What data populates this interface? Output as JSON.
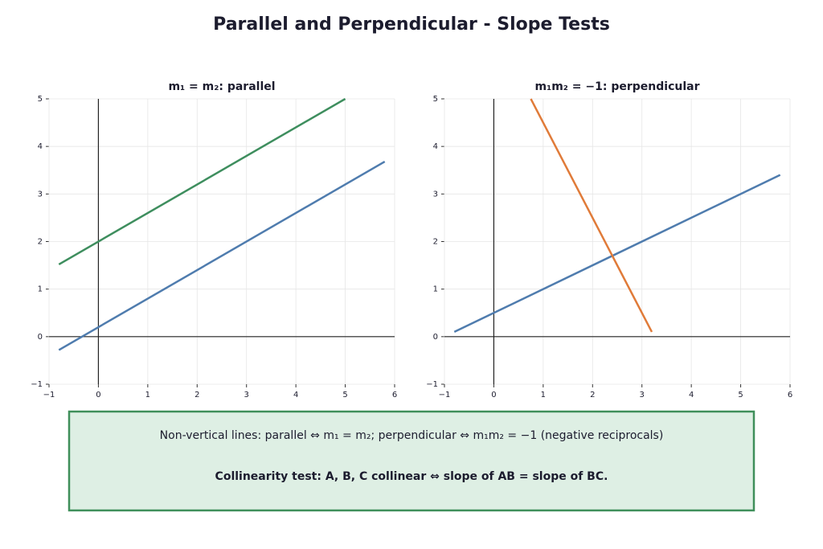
{
  "title": "Parallel and Perpendicular - Slope Tests",
  "chart_data": [
    {
      "type": "line",
      "title": "m₁ = m₂: parallel",
      "series": [
        {
          "color": "#4f7cae",
          "x": [
            -0.8,
            5.8
          ],
          "values": [
            -0.28,
            3.68
          ]
        },
        {
          "color": "#3e8e5e",
          "x": [
            -0.8,
            5
          ],
          "values": [
            1.52,
            5
          ]
        }
      ],
      "xlim": [
        -1,
        6
      ],
      "ylim": [
        -1,
        5
      ],
      "xticks": [
        {
          "value": -1,
          "label": "−1"
        },
        0,
        1,
        2,
        3,
        4,
        5,
        6
      ],
      "yticks": [
        {
          "value": -1,
          "label": "−1"
        },
        0,
        1,
        2,
        3,
        4,
        5
      ],
      "grid": true
    },
    {
      "type": "line",
      "title": "m₁m₂ = −1: perpendicular",
      "series": [
        {
          "color": "#4f7cae",
          "x": [
            -0.8,
            5.8
          ],
          "values": [
            0.1,
            3.4
          ]
        },
        {
          "color": "#e07b39",
          "x": [
            0.75,
            3.2
          ],
          "values": [
            5,
            0.1
          ]
        }
      ],
      "xlim": [
        -1,
        6
      ],
      "ylim": [
        -1,
        5
      ],
      "xticks": [
        {
          "value": -1,
          "label": "−1"
        },
        0,
        1,
        2,
        3,
        4,
        5,
        6
      ],
      "yticks": [
        {
          "value": -1,
          "label": "−1"
        },
        0,
        1,
        2,
        3,
        4,
        5
      ],
      "grid": true
    }
  ],
  "note": {
    "lines": [
      "Non-vertical lines:  parallel ⇔ m₁ = m₂;   perpendicular ⇔ m₁m₂ = −1 (negative reciprocals)",
      "Collinearity test: A, B, C collinear ⇔ slope of AB = slope of BC."
    ]
  }
}
